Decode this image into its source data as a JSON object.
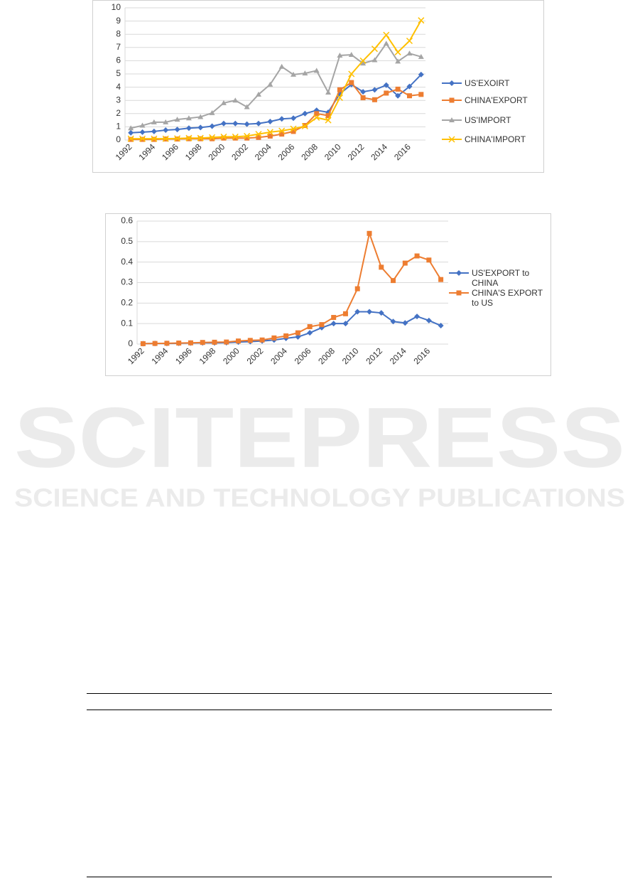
{
  "watermark": {
    "title": "SCITEPRESS",
    "subtitle": "SCIENCE AND TECHNOLOGY PUBLICATIONS"
  },
  "chart_data": [
    {
      "type": "line",
      "categories": [
        "1992",
        null,
        "1994",
        null,
        "1996",
        null,
        "1998",
        null,
        "2000",
        null,
        "2002",
        null,
        "2004",
        null,
        "2006",
        null,
        "2008",
        null,
        "2010",
        null,
        "2012",
        null,
        "2014",
        null,
        "2016",
        null
      ],
      "ylim": [
        0,
        10
      ],
      "yticks": [
        0,
        1,
        2,
        3,
        4,
        5,
        6,
        7,
        8,
        9,
        10
      ],
      "grid": true,
      "legend": "right",
      "series": [
        {
          "name": "US'EXOIRT",
          "color": "#4472c4",
          "marker": "diamond",
          "values": [
            0.55,
            0.6,
            0.65,
            0.75,
            0.8,
            0.9,
            0.95,
            1.05,
            1.25,
            1.25,
            1.2,
            1.25,
            1.4,
            1.6,
            1.65,
            2.0,
            2.25,
            2.1,
            3.5,
            4.2,
            3.65,
            3.8,
            4.15,
            3.35,
            4.05,
            4.95
          ]
        },
        {
          "name": "CHINA'EXPORT",
          "color": "#ed7d31",
          "marker": "square",
          "values": [
            0.05,
            0.05,
            0.05,
            0.08,
            0.08,
            0.1,
            0.1,
            0.1,
            0.15,
            0.15,
            0.15,
            0.2,
            0.3,
            0.45,
            0.65,
            1.1,
            2.0,
            1.85,
            3.8,
            4.35,
            3.2,
            3.05,
            3.55,
            3.85,
            3.35,
            3.45
          ]
        },
        {
          "name": "US'IMPORT",
          "color": "#a5a5a5",
          "marker": "triangle",
          "values": [
            0.9,
            1.1,
            1.35,
            1.35,
            1.55,
            1.65,
            1.75,
            2.05,
            2.8,
            3.0,
            2.5,
            3.45,
            4.2,
            5.55,
            4.95,
            5.05,
            5.25,
            3.6,
            6.4,
            6.45,
            5.8,
            6.05,
            7.3,
            5.95,
            6.55,
            6.3
          ]
        },
        {
          "name": "CHINA'IMPORT",
          "color": "#ffc000",
          "marker": "x",
          "values": [
            0.1,
            0.1,
            0.1,
            0.1,
            0.12,
            0.15,
            0.15,
            0.2,
            0.25,
            0.25,
            0.3,
            0.45,
            0.6,
            0.7,
            0.85,
            1.05,
            1.7,
            1.5,
            3.2,
            5.0,
            6.0,
            6.9,
            7.95,
            6.65,
            7.5,
            9.05
          ]
        }
      ]
    },
    {
      "type": "line",
      "categories": [
        "1992",
        null,
        "1994",
        null,
        "1996",
        null,
        "1998",
        null,
        "2000",
        null,
        "2002",
        null,
        "2004",
        null,
        "2006",
        null,
        "2008",
        null,
        "2010",
        null,
        "2012",
        null,
        "2014",
        null,
        "2016",
        null
      ],
      "ylim": [
        0,
        0.6
      ],
      "yticks": [
        0,
        0.1,
        0.2,
        0.3,
        0.4,
        0.5,
        0.6
      ],
      "grid": true,
      "legend": "right",
      "series": [
        {
          "name": "US'EXPORT to CHINA",
          "color": "#4472c4",
          "marker": "diamond",
          "values": [
            0.002,
            0.003,
            0.003,
            0.004,
            0.005,
            0.006,
            0.006,
            0.007,
            0.01,
            0.012,
            0.015,
            0.02,
            0.028,
            0.035,
            0.055,
            0.08,
            0.1,
            0.1,
            0.158,
            0.158,
            0.152,
            0.11,
            0.103,
            0.135,
            0.115,
            0.09
          ]
        },
        {
          "name": "CHINA'S EXPORT to US",
          "color": "#ed7d31",
          "marker": "square",
          "values": [
            0.002,
            0.003,
            0.004,
            0.005,
            0.006,
            0.008,
            0.009,
            0.01,
            0.015,
            0.018,
            0.02,
            0.03,
            0.04,
            0.055,
            0.085,
            0.095,
            0.13,
            0.148,
            0.27,
            0.54,
            0.375,
            0.31,
            0.395,
            0.43,
            0.41,
            0.315
          ]
        }
      ]
    }
  ]
}
